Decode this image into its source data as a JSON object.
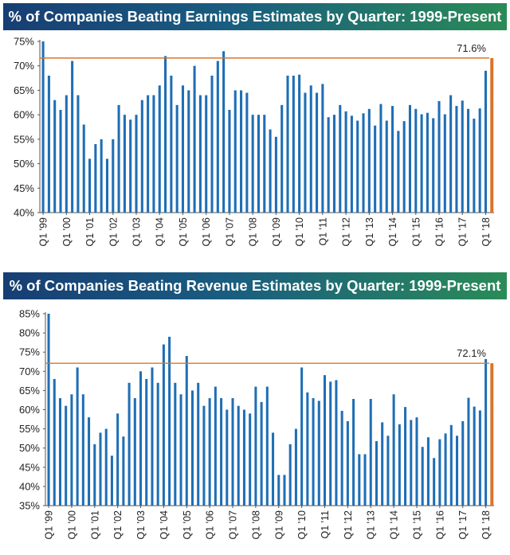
{
  "colors": {
    "bar": "#1f6eb5",
    "last_bar": "#d9742b",
    "ref_line": "#d9742b",
    "axis": "#555555"
  },
  "charts": [
    {
      "title": "% of Companies Beating Earnings Estimates by Quarter: 1999-Present",
      "reference_label": "71.6%"
    },
    {
      "title": "% of Companies Beating Revenue Estimates by Quarter: 1999-Present",
      "reference_label": "72.1%"
    }
  ],
  "chart_data": [
    {
      "type": "bar",
      "title": "% of Companies Beating Earnings Estimates by Quarter: 1999-Present",
      "ylim": [
        40,
        75
      ],
      "yticks": [
        "40%",
        "45%",
        "50%",
        "55%",
        "60%",
        "65%",
        "70%",
        "75%"
      ],
      "xticks": [
        "Q1 '99",
        "Q1 '00",
        "Q1 '01",
        "Q1 '02",
        "Q1 '03",
        "Q1 '04",
        "Q1 '05",
        "Q1 '06",
        "Q1 '07",
        "Q1 '08",
        "Q1 '09",
        "Q1 '10",
        "Q1 '11",
        "Q1 '12",
        "Q1 '13",
        "Q1 '14",
        "Q1 '15",
        "Q1 '16",
        "Q1 '17",
        "Q1 '18"
      ],
      "reference_line": 71.6,
      "reference_label": "71.6%",
      "values": [
        75,
        68,
        63,
        61,
        64,
        71,
        64,
        58,
        51,
        54,
        55,
        51,
        55,
        62,
        60,
        59,
        60,
        63,
        64,
        64,
        66,
        72,
        68,
        62,
        66,
        65,
        70,
        64,
        64,
        68,
        71,
        73,
        61,
        65,
        65,
        64.5,
        60,
        60,
        60,
        57,
        55.5,
        62,
        68,
        68,
        68.2,
        64.5,
        66,
        64.5,
        66.3,
        59.5,
        60,
        62,
        60.7,
        59.8,
        58.8,
        60.3,
        61.2,
        57.8,
        62.2,
        58.8,
        61.8,
        56.7,
        58.7,
        62,
        61.2,
        60.1,
        60.4,
        59.3,
        62.8,
        60.1,
        64,
        61.8,
        62.9,
        61.2,
        59.2,
        61.3,
        69,
        71.6
      ]
    },
    {
      "type": "bar",
      "title": "% of Companies Beating Revenue Estimates by Quarter: 1999-Present",
      "ylim": [
        35,
        85
      ],
      "yticks": [
        "35%",
        "40%",
        "45%",
        "50%",
        "55%",
        "60%",
        "65%",
        "70%",
        "75%",
        "80%",
        "85%"
      ],
      "xticks": [
        "Q1 '99",
        "Q1 '00",
        "Q1 '01",
        "Q1 '02",
        "Q1 '03",
        "Q1 '04",
        "Q1 '05",
        "Q1 '06",
        "Q1 '07",
        "Q1 '08",
        "Q1 '09",
        "Q1 '10",
        "Q1 '11",
        "Q1 '12",
        "Q1 '13",
        "Q1 '14",
        "Q1 '15",
        "Q1 '16",
        "Q1 '17",
        "Q1 '18"
      ],
      "reference_line": 72.1,
      "reference_label": "72.1%",
      "values": [
        85,
        68,
        63,
        61,
        64,
        71,
        64,
        58,
        51,
        54,
        55,
        48,
        59,
        53,
        67,
        63,
        70,
        68,
        71,
        67,
        77,
        79,
        67,
        64,
        74,
        65,
        67,
        61,
        63,
        66,
        63,
        60,
        63,
        61,
        60,
        59,
        66,
        62,
        66,
        54,
        43,
        43,
        51,
        55,
        71,
        64.5,
        63,
        62.3,
        69,
        67.3,
        67.7,
        59.7,
        57,
        62.8,
        48.4,
        48.4,
        62.8,
        51.8,
        56.7,
        53.2,
        64,
        56.2,
        60.7,
        57.3,
        58,
        50.3,
        52.8,
        47.4,
        52.3,
        53.8,
        56,
        53.2,
        57,
        63.1,
        60.8,
        59.8,
        73.2,
        72.1
      ]
    }
  ]
}
